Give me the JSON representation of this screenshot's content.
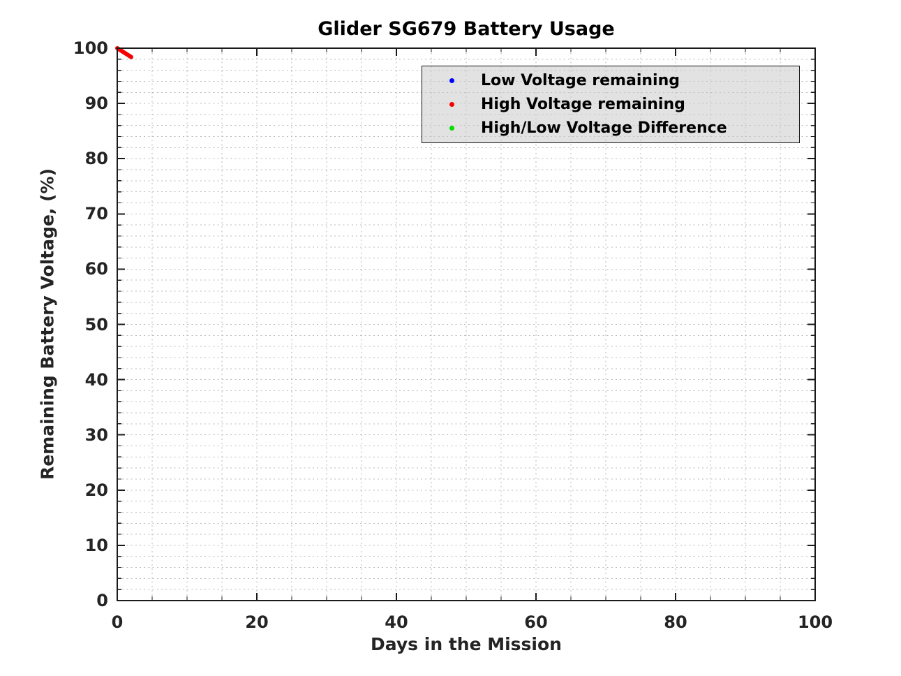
{
  "chart_data": {
    "type": "scatter",
    "title": "Glider SG679 Battery Usage",
    "xlabel": "Days in the Mission",
    "ylabel": "Remaining Battery Voltage, (%)",
    "xlim": [
      0,
      100
    ],
    "ylim": [
      0,
      100
    ],
    "x_major_ticks": [
      0,
      20,
      40,
      60,
      80,
      100
    ],
    "y_major_ticks": [
      0,
      10,
      20,
      30,
      40,
      50,
      60,
      70,
      80,
      90,
      100
    ],
    "x_minor_step": 5,
    "y_minor_step": 2,
    "grid": {
      "major": true,
      "minor": true,
      "style": "dotted"
    },
    "legend_position": "upper-right-inside",
    "series": [
      {
        "name": "Low Voltage remaining",
        "color": "#0000ff",
        "marker": "point",
        "visible_points": {
          "x": [],
          "y": []
        }
      },
      {
        "name": "High Voltage remaining",
        "color": "#f60000",
        "marker": "point",
        "visible_points": {
          "x": [
            0,
            0.5,
            1.0,
            1.5,
            2.0
          ],
          "y": [
            100,
            99.6,
            99.2,
            98.8,
            98.4
          ]
        }
      },
      {
        "name": "High/Low Voltage Difference",
        "color": "#00dd00",
        "marker": "point",
        "visible_points": {
          "x": [],
          "y": []
        }
      }
    ]
  },
  "legend": {
    "items": [
      {
        "label": "Low Voltage remaining",
        "color": "#0000ff"
      },
      {
        "label": "High Voltage remaining",
        "color": "#f60000"
      },
      {
        "label": "High/Low Voltage Difference",
        "color": "#00dd00"
      }
    ]
  },
  "colors": {
    "axis": "#1a1a1a",
    "tick_text": "#242424",
    "title_text": "#000000",
    "grid": "#b9b9b9",
    "legend_background": "#e4e4e4"
  }
}
